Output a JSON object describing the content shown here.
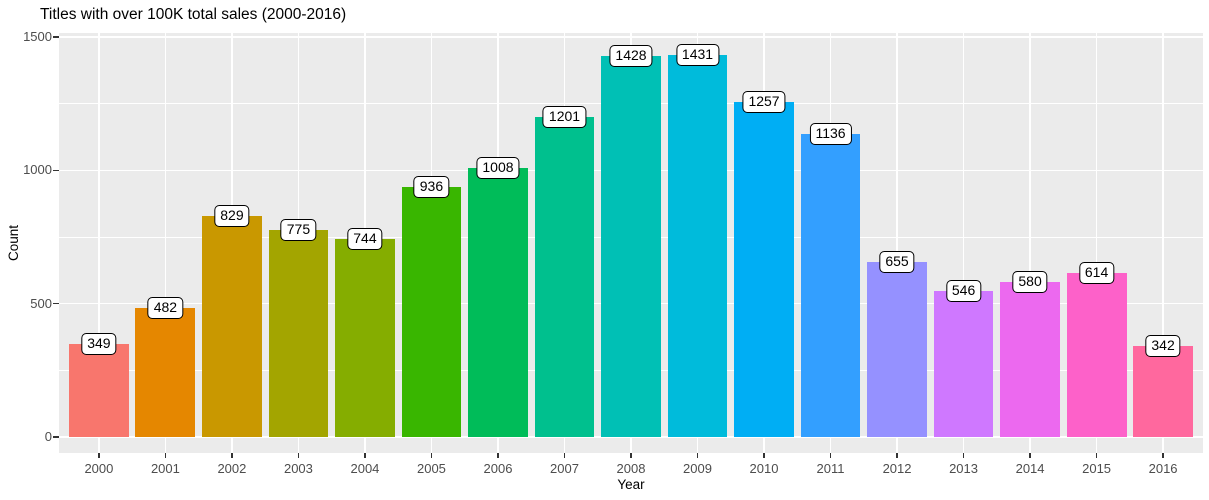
{
  "chart_data": {
    "type": "bar",
    "title": "Titles with over 100K total sales (2000-2016)",
    "xlabel": "Year",
    "ylabel": "Count",
    "categories": [
      "2000",
      "2001",
      "2002",
      "2003",
      "2004",
      "2005",
      "2006",
      "2007",
      "2008",
      "2009",
      "2010",
      "2011",
      "2012",
      "2013",
      "2014",
      "2015",
      "2016"
    ],
    "values": [
      349,
      482,
      829,
      775,
      744,
      936,
      1008,
      1201,
      1428,
      1431,
      1257,
      1136,
      655,
      546,
      580,
      614,
      342
    ],
    "bar_colors": [
      "#F8766D",
      "#E58700",
      "#C99800",
      "#A3A500",
      "#85AD00",
      "#39B600",
      "#00BC59",
      "#00C08E",
      "#00C0B5",
      "#00BBDB",
      "#00AEF4",
      "#339FFF",
      "#9591FF",
      "#CF78FF",
      "#EC69EF",
      "#FD61C9",
      "#FF689E"
    ],
    "y_major_ticks": [
      0,
      500,
      1000,
      1500
    ],
    "y_minor_ticks": [
      250,
      750,
      1250
    ],
    "ylim": [
      -67,
      1515
    ],
    "grid": "on",
    "legend": "none",
    "colors": {
      "panel_bg": "#EBEBEB",
      "grid": "#FFFFFF",
      "tick": "#333333",
      "tick_label": "#4D4D4D",
      "text": "#000000",
      "value_label_bg": "#FFFFFF",
      "value_label_border": "#000000"
    }
  }
}
